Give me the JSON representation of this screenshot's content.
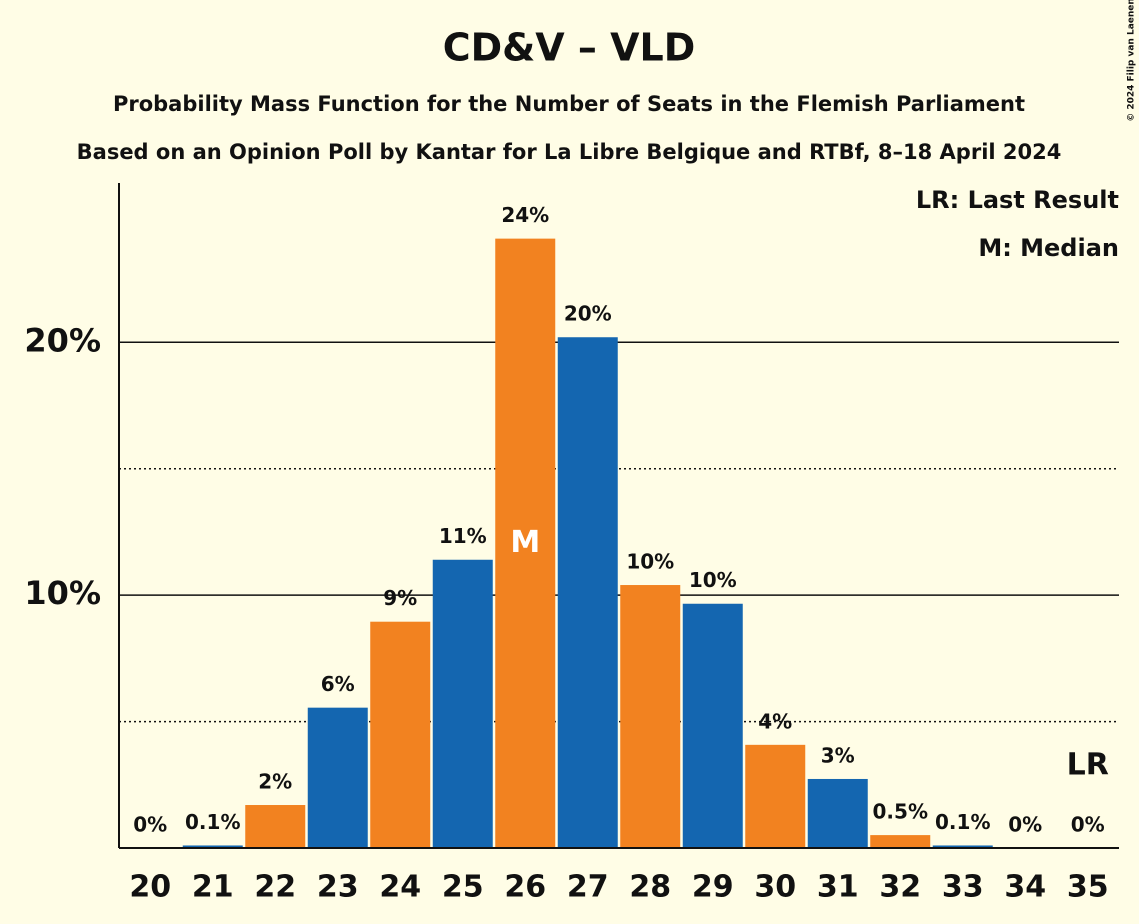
{
  "chart_data": {
    "type": "bar",
    "title": "CD&V – VLD",
    "subtitle": "Probability Mass Function for the Number of Seats in the Flemish Parliament",
    "subtitle2": "Based on an Opinion Poll by Kantar for La Libre Belgique and RTBf, 8–18 April 2024",
    "copyright": "© 2024 Filip van Laenen",
    "categories": [
      "20",
      "21",
      "22",
      "23",
      "24",
      "25",
      "26",
      "27",
      "28",
      "29",
      "30",
      "31",
      "32",
      "33",
      "34",
      "35"
    ],
    "values": [
      0,
      0.1,
      1.7,
      5.55,
      8.95,
      11.4,
      24.1,
      20.2,
      10.4,
      9.66,
      4.08,
      2.73,
      0.51,
      0.1,
      0,
      0
    ],
    "value_labels": [
      "0%",
      "0.1%",
      "2%",
      "6%",
      "9%",
      "11%",
      "24%",
      "20%",
      "10%",
      "10%",
      "4%",
      "3%",
      "0.5%",
      "0.1%",
      "0%",
      "0%"
    ],
    "colors": [
      "#f28220",
      "#1466b0",
      "#f28220",
      "#1466b0",
      "#f28220",
      "#1466b0",
      "#f28220",
      "#1466b0",
      "#f28220",
      "#1466b0",
      "#f28220",
      "#1466b0",
      "#f28220",
      "#1466b0",
      "#f28220",
      "#1466b0"
    ],
    "ylim": [
      0,
      26.3
    ],
    "yticks": [
      {
        "value": 10,
        "label": "10%"
      },
      {
        "value": 20,
        "label": "20%"
      }
    ],
    "minor_yticks": [
      5,
      15
    ],
    "grid": true,
    "legend": [
      "LR: Last Result",
      "M: Median"
    ],
    "legend_position": "upper right",
    "markers": [
      {
        "category": "26",
        "label": "M"
      },
      {
        "category": "35",
        "label": "LR"
      }
    ]
  }
}
